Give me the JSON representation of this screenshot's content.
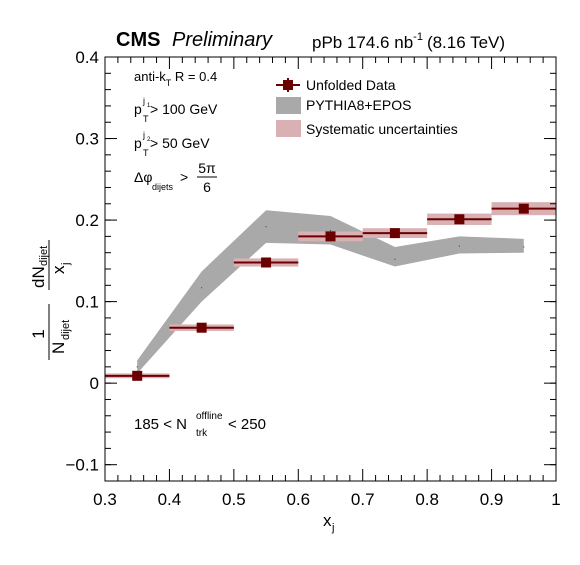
{
  "header": {
    "experiment": "CMS",
    "status": "Preliminary",
    "dataset_prefix": "pPb 174.6 nb",
    "dataset_exponent": "-1",
    "energy": "(8.16 TeV)"
  },
  "cuts": {
    "jet_algo_prefix": "anti-k",
    "jet_algo_sub": "T",
    "jet_algo_suffix": " R = 0.4",
    "pt1_base": "p",
    "pt1_sup": "j",
    "pt1_supsub": "1",
    "pt1_sub": "T",
    "pt1_text": " > 100 GeV",
    "pt2_base": "p",
    "pt2_sup": "j",
    "pt2_supsub": "2",
    "pt2_sub": "T",
    "pt2_text": " > 50 GeV",
    "dphi_base": "Δφ",
    "dphi_sub": "dijets",
    "dphi_gt": " >",
    "dphi_num": "5π",
    "dphi_den": "6"
  },
  "multiplicity": {
    "low": "185 < N",
    "sup": "offline",
    "sub": "trk",
    "high": " < 250"
  },
  "ylabel_parts": {
    "one": "1",
    "N": "N",
    "N_sub": "dijet",
    "dN": "dN",
    "dN_sub": "dijet",
    "x": "x",
    "x_sub": "j"
  },
  "xlabel_parts": {
    "x": "x",
    "x_sub": "j"
  },
  "legend": {
    "placement": "top-right",
    "entries": [
      "Unfolded Data",
      "PYTHIA8+EPOS",
      "Systematic uncertainties"
    ]
  },
  "colors": {
    "data": "#6b0000",
    "systematic": "#d9b1b4",
    "pythia": "#a9a9a9",
    "frame": "#000000"
  },
  "chart_data": {
    "type": "scatter",
    "xlabel": "x_j",
    "ylabel": "1/N_dijet dN_dijet/x_j",
    "xlim": [
      0.3,
      1.0
    ],
    "ylim": [
      -0.12,
      0.4
    ],
    "x_ticks": [
      "0.3",
      "0.4",
      "0.5",
      "0.6",
      "0.7",
      "0.8",
      "0.9",
      "1"
    ],
    "y_ticks": [
      "−0.1",
      "0",
      "0.1",
      "0.2",
      "0.3",
      "0.4"
    ],
    "grid": false,
    "series": [
      {
        "name": "Unfolded Data",
        "x": [
          0.35,
          0.45,
          0.55,
          0.65,
          0.75,
          0.85,
          0.95
        ],
        "x_low": [
          0.3,
          0.4,
          0.5,
          0.6,
          0.7,
          0.8,
          0.9
        ],
        "x_high": [
          0.4,
          0.5,
          0.6,
          0.7,
          0.8,
          0.9,
          1.0
        ],
        "y": [
          0.009,
          0.068,
          0.148,
          0.18,
          0.184,
          0.201,
          0.214
        ],
        "syst": [
          0.003,
          0.004,
          0.005,
          0.006,
          0.006,
          0.007,
          0.008
        ]
      },
      {
        "name": "PYTHIA8+EPOS",
        "x": [
          0.35,
          0.45,
          0.55,
          0.65,
          0.75,
          0.85,
          0.95
        ],
        "y_low": [
          0.012,
          0.1,
          0.172,
          0.17,
          0.143,
          0.159,
          0.16
        ],
        "y_high": [
          0.028,
          0.137,
          0.212,
          0.205,
          0.167,
          0.18,
          0.177
        ],
        "y_central": [
          0.02,
          0.117,
          0.192,
          0.187,
          0.152,
          0.168,
          0.167
        ]
      }
    ]
  }
}
